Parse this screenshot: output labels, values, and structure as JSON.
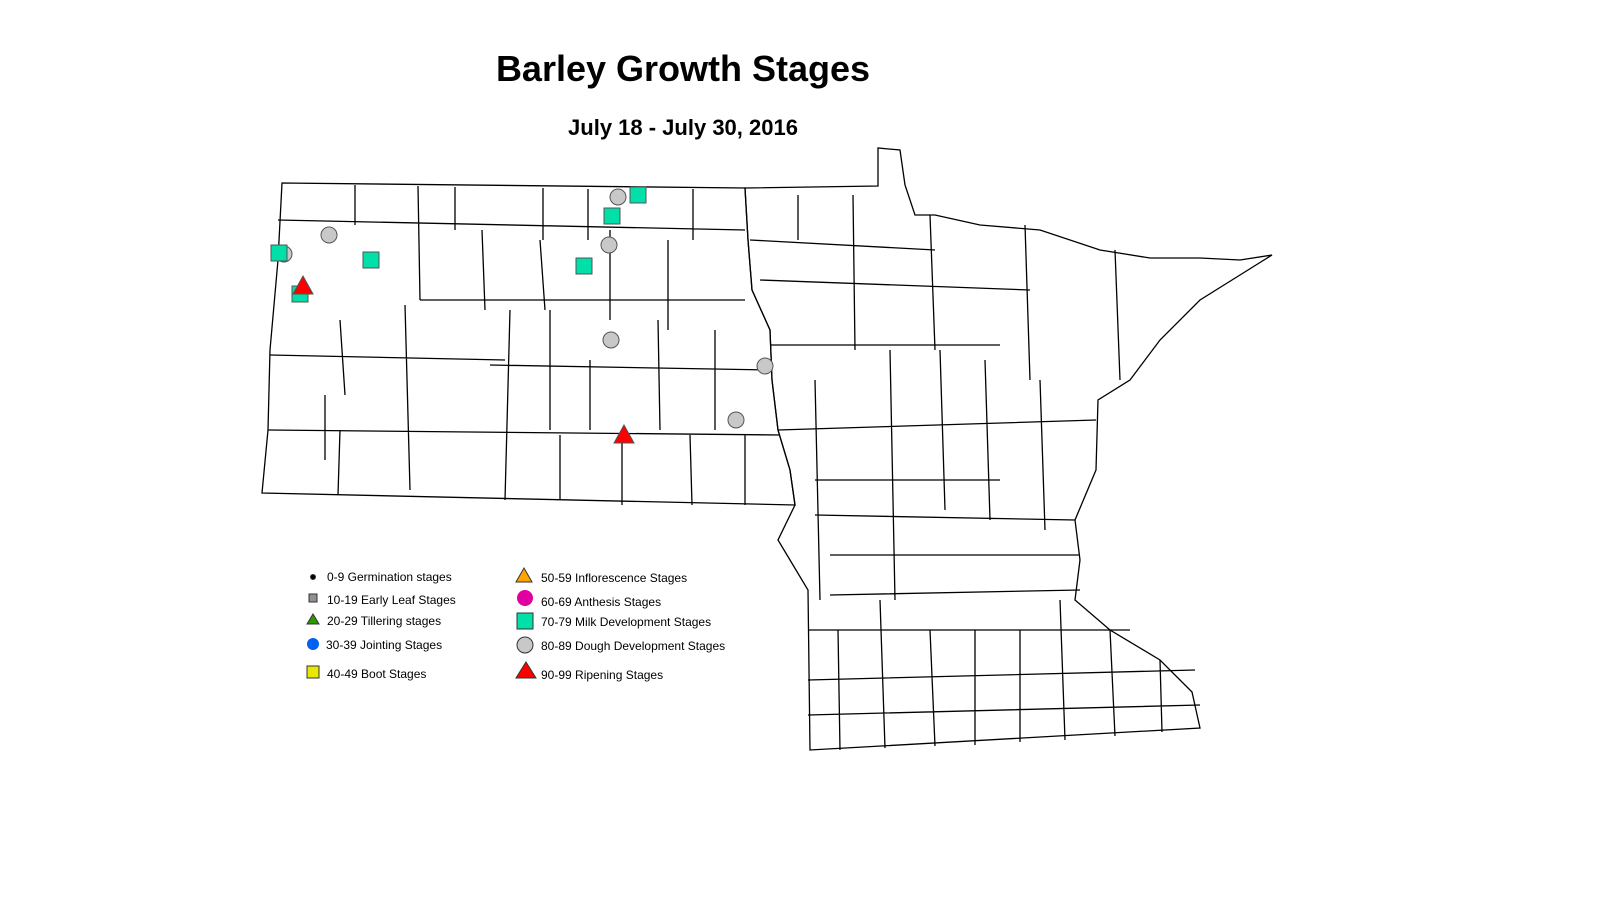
{
  "title": "Barley Growth Stages",
  "subtitle": "July 18 - July 30, 2016",
  "colors": {
    "milk": "#00e0a8",
    "dough": "#c8c8c8",
    "ripening": "#ff0000",
    "inflorescence": "#ffa500",
    "anthesis": "#e000a0",
    "tillering": "#2a9a00",
    "jointing": "#0060f0",
    "boot": "#e8e800",
    "early_leaf": "#909090",
    "germination": "#000000"
  },
  "legend": [
    {
      "label": "0-9 Germination stages",
      "symbol": "dot"
    },
    {
      "label": "10-19 Early Leaf Stages",
      "symbol": "square-gray"
    },
    {
      "label": "20-29 Tillering stages",
      "symbol": "triangle-green"
    },
    {
      "label": "30-39 Jointing Stages",
      "symbol": "circle-blue"
    },
    {
      "label": "40-49 Boot Stages",
      "symbol": "square-yellow"
    },
    {
      "label": "50-59 Inflorescence Stages",
      "symbol": "triangle-orange"
    },
    {
      "label": "60-69 Anthesis Stages",
      "symbol": "circle-magenta"
    },
    {
      "label": "70-79 Milk Development Stages",
      "symbol": "square-teal"
    },
    {
      "label": "80-89 Dough Development Stages",
      "symbol": "circle-gray"
    },
    {
      "label": "90-99 Ripening Stages",
      "symbol": "triangle-red"
    }
  ],
  "observation_stage_counts": {
    "70-79 Milk Development Stages": 6,
    "80-89 Dough Development Stages": 7,
    "90-99 Ripening Stages": 2
  }
}
